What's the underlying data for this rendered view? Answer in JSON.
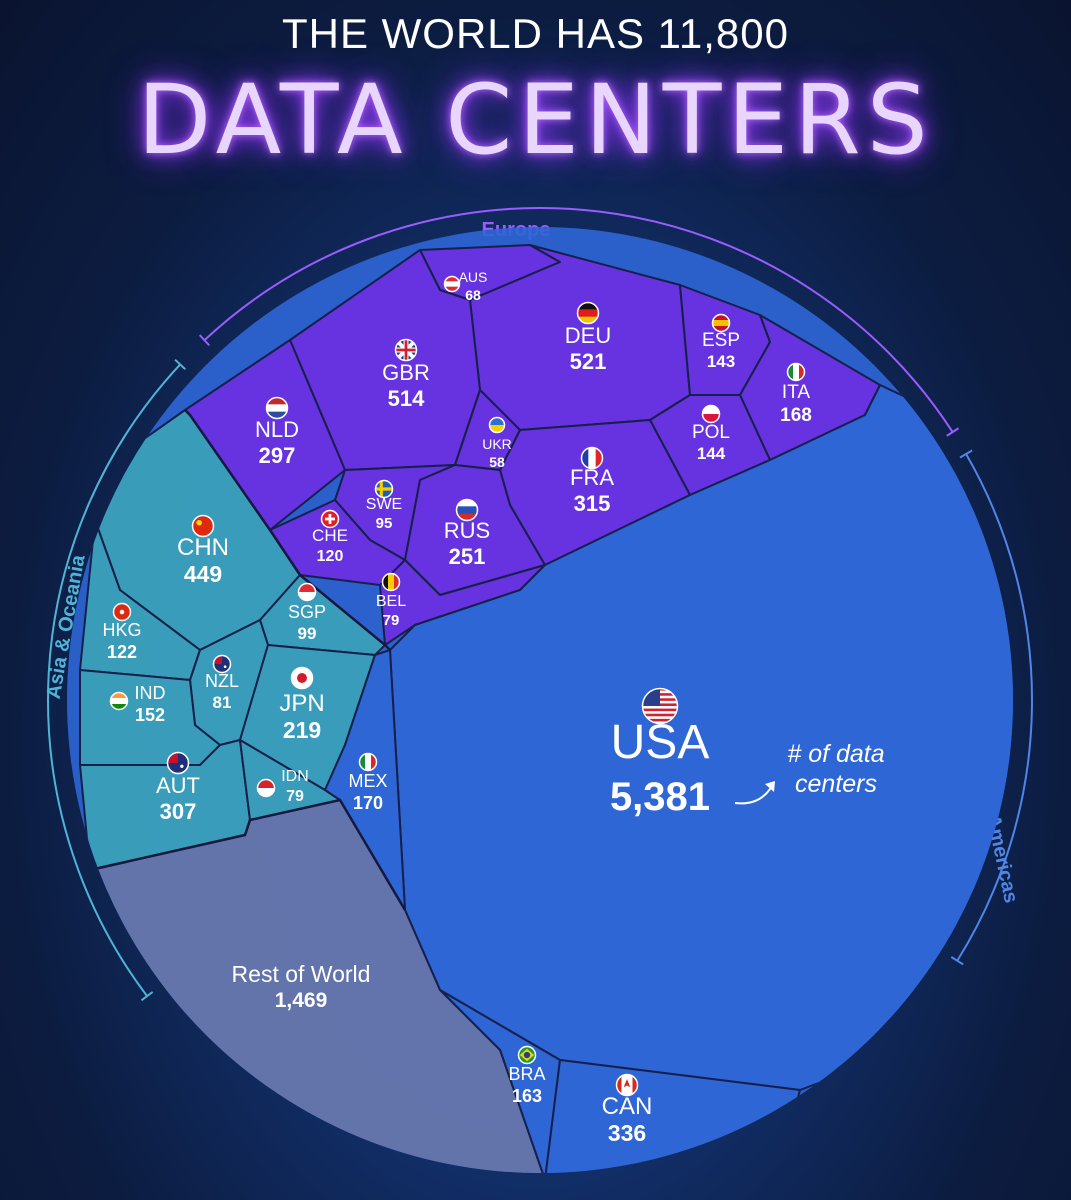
{
  "title_top": "THE WORLD HAS 11,800",
  "title_main": "DATA CENTERS",
  "annotation": {
    "line1": "# of data",
    "line2": "centers"
  },
  "colors": {
    "europe": "#6a2fe0",
    "asia": "#3a9fb8",
    "americas": "#2f66d6",
    "rest": "#6d78a6",
    "region_europe": "#9a5cff",
    "region_asia": "#4fb4d6",
    "region_americas": "#4f86e8"
  },
  "chart_data": {
    "type": "voronoi-treemap",
    "title": "DATA CENTERS",
    "total": "11,800",
    "regions": [
      {
        "name": "Europe",
        "countries": [
          {
            "code": "AUS",
            "value": 68,
            "display": "68",
            "flag": "austria-flag-icon"
          },
          {
            "code": "DEU",
            "value": 521,
            "display": "521",
            "flag": "germany-flag-icon"
          },
          {
            "code": "ESP",
            "value": 143,
            "display": "143",
            "flag": "spain-flag-icon"
          },
          {
            "code": "ITA",
            "value": 168,
            "display": "168",
            "flag": "italy-flag-icon"
          },
          {
            "code": "GBR",
            "value": 514,
            "display": "514",
            "flag": "uk-flag-icon"
          },
          {
            "code": "NLD",
            "value": 297,
            "display": "297",
            "flag": "netherlands-flag-icon"
          },
          {
            "code": "UKR",
            "value": 58,
            "display": "58",
            "flag": "ukraine-flag-icon"
          },
          {
            "code": "POL",
            "value": 144,
            "display": "144",
            "flag": "poland-flag-icon"
          },
          {
            "code": "FRA",
            "value": 315,
            "display": "315",
            "flag": "france-flag-icon"
          },
          {
            "code": "SWE",
            "value": 95,
            "display": "95",
            "flag": "sweden-flag-icon"
          },
          {
            "code": "CHE",
            "value": 120,
            "display": "120",
            "flag": "switzerland-flag-icon"
          },
          {
            "code": "RUS",
            "value": 251,
            "display": "251",
            "flag": "russia-flag-icon"
          },
          {
            "code": "BEL",
            "value": 79,
            "display": "79",
            "flag": "belgium-flag-icon"
          }
        ]
      },
      {
        "name": "Asia & Oceania",
        "countries": [
          {
            "code": "CHN",
            "value": 449,
            "display": "449",
            "flag": "china-flag-icon"
          },
          {
            "code": "HKG",
            "value": 122,
            "display": "122",
            "flag": "hongkong-flag-icon"
          },
          {
            "code": "SGP",
            "value": 99,
            "display": "99",
            "flag": "singapore-flag-icon"
          },
          {
            "code": "NZL",
            "value": 81,
            "display": "81",
            "flag": "newzealand-flag-icon"
          },
          {
            "code": "IND",
            "value": 152,
            "display": "152",
            "flag": "india-flag-icon"
          },
          {
            "code": "JPN",
            "value": 219,
            "display": "219",
            "flag": "japan-flag-icon"
          },
          {
            "code": "AUT",
            "value": 307,
            "display": "307",
            "flag": "australia-flag-icon"
          },
          {
            "code": "IDN",
            "value": 79,
            "display": "79",
            "flag": "indonesia-flag-icon"
          }
        ]
      },
      {
        "name": "Americas",
        "countries": [
          {
            "code": "USA",
            "value": 5381,
            "display": "5,381",
            "flag": "usa-flag-icon"
          },
          {
            "code": "MEX",
            "value": 170,
            "display": "170",
            "flag": "mexico-flag-icon"
          },
          {
            "code": "BRA",
            "value": 163,
            "display": "163",
            "flag": "brazil-flag-icon"
          },
          {
            "code": "CAN",
            "value": 336,
            "display": "336",
            "flag": "canada-flag-icon"
          }
        ]
      },
      {
        "name": "",
        "countries": [
          {
            "code": "Rest of World",
            "value": 1469,
            "display": "1,469",
            "flag": ""
          }
        ]
      }
    ]
  }
}
